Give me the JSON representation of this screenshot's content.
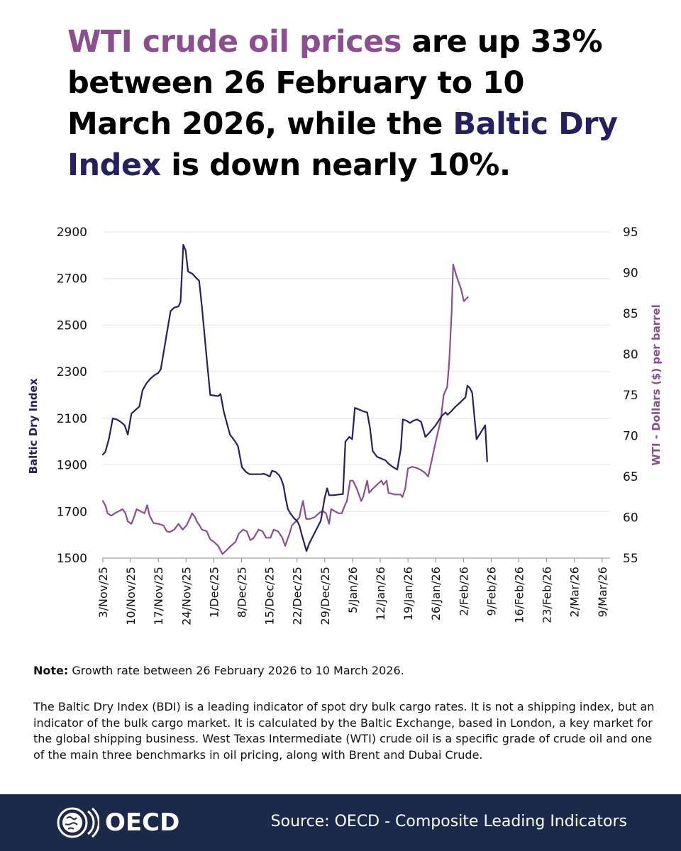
{
  "headline": {
    "part1": "WTI crude oil prices",
    "part2": " are up 33% between 26 February to 10 March 2026, while the ",
    "part3": "Baltic Dry Index",
    "part4": " is down nearly 10%."
  },
  "colors": {
    "wti": "#8b4f8f",
    "bdi": "#24215e",
    "footer_bg": "#1b2a4a"
  },
  "chart_data": {
    "type": "line",
    "xlabel": "",
    "ylabel_left": "Baltic Dry Index",
    "ylabel_right": "WTI - Dollars ($) per barrel",
    "ylim_left": [
      1500,
      2900
    ],
    "ylim_right": [
      55,
      95
    ],
    "yticks_left": [
      1500,
      1700,
      1900,
      2100,
      2300,
      2500,
      2700,
      2900
    ],
    "yticks_right": [
      55,
      60,
      65,
      70,
      75,
      80,
      85,
      90,
      95
    ],
    "xlim_days": [
      0,
      128
    ],
    "xticks": [
      {
        "day": 0,
        "label": "3/Nov/25"
      },
      {
        "day": 7,
        "label": "10/Nov/25"
      },
      {
        "day": 14,
        "label": "17/Nov/25"
      },
      {
        "day": 21,
        "label": "24/Nov/25"
      },
      {
        "day": 28,
        "label": "1/Dec/25"
      },
      {
        "day": 35,
        "label": "8/Dec/25"
      },
      {
        "day": 42,
        "label": "15/Dec/25"
      },
      {
        "day": 49,
        "label": "22/Dec/25"
      },
      {
        "day": 56,
        "label": "29/Dec/25"
      },
      {
        "day": 63,
        "label": "5/Jan/26"
      },
      {
        "day": 70,
        "label": "12/Jan/26"
      },
      {
        "day": 77,
        "label": "19/Jan/26"
      },
      {
        "day": 84,
        "label": "26/Jan/26"
      },
      {
        "day": 91,
        "label": "2/Feb/26"
      },
      {
        "day": 98,
        "label": "9/Feb/26"
      },
      {
        "day": 105,
        "label": "16/Feb/26"
      },
      {
        "day": 112,
        "label": "23/Feb/26"
      },
      {
        "day": 119,
        "label": "2/Mar/26"
      },
      {
        "day": 126,
        "label": "9/Mar/26"
      }
    ],
    "grid": true,
    "series": [
      {
        "name": "Baltic Dry Index",
        "axis": "left",
        "points": [
          [
            0,
            1945
          ],
          [
            0.6,
            1955
          ],
          [
            1.5,
            2010
          ],
          [
            2.5,
            2100
          ],
          [
            3.5,
            2095
          ],
          [
            4.5,
            2085
          ],
          [
            5.5,
            2070
          ],
          [
            6.3,
            2030
          ],
          [
            7.2,
            2120
          ],
          [
            8.5,
            2140
          ],
          [
            9.2,
            2150
          ],
          [
            10,
            2220
          ],
          [
            11,
            2250
          ],
          [
            12,
            2270
          ],
          [
            13,
            2285
          ],
          [
            14,
            2295
          ],
          [
            14.6,
            2310
          ],
          [
            15.3,
            2380
          ],
          [
            16.1,
            2460
          ],
          [
            17.1,
            2560
          ],
          [
            18,
            2575
          ],
          [
            19.1,
            2580
          ],
          [
            19.6,
            2600
          ],
          [
            20.3,
            2845
          ],
          [
            20.9,
            2820
          ],
          [
            21.5,
            2730
          ],
          [
            22.6,
            2720
          ],
          [
            23.7,
            2700
          ],
          [
            24.3,
            2690
          ],
          [
            25,
            2580
          ],
          [
            25.6,
            2470
          ],
          [
            26.3,
            2340
          ],
          [
            27.1,
            2200
          ],
          [
            29.1,
            2195
          ],
          [
            29.7,
            2205
          ],
          [
            30.5,
            2130
          ],
          [
            31.6,
            2060
          ],
          [
            32.1,
            2030
          ],
          [
            33.4,
            2000
          ],
          [
            34.1,
            1980
          ],
          [
            35.1,
            1890
          ],
          [
            36.1,
            1870
          ],
          [
            37,
            1860
          ],
          [
            39.7,
            1860
          ],
          [
            40.7,
            1862
          ],
          [
            41.6,
            1855
          ],
          [
            42.1,
            1850
          ],
          [
            42.7,
            1875
          ],
          [
            43.6,
            1870
          ],
          [
            44.5,
            1855
          ],
          [
            45,
            1840
          ],
          [
            45.6,
            1810
          ],
          [
            46.1,
            1760
          ],
          [
            46.7,
            1710
          ],
          [
            47.4,
            1690
          ],
          [
            48.3,
            1670
          ],
          [
            49,
            1660
          ],
          [
            49.6,
            1640
          ],
          [
            50.2,
            1600
          ],
          [
            51.4,
            1530
          ],
          [
            52,
            1560
          ],
          [
            53.5,
            1610
          ],
          [
            55,
            1660
          ],
          [
            56,
            1760
          ],
          [
            56.6,
            1800
          ],
          [
            57.1,
            1770
          ],
          [
            58.2,
            1770
          ],
          [
            60.6,
            1775
          ],
          [
            61.2,
            2000
          ],
          [
            61.7,
            2010
          ],
          [
            62.2,
            2020
          ],
          [
            62.9,
            2010
          ],
          [
            63.6,
            2145
          ],
          [
            64.3,
            2140
          ],
          [
            65.7,
            2130
          ],
          [
            66.7,
            2125
          ],
          [
            67.4,
            2060
          ],
          [
            68.1,
            1960
          ],
          [
            69.2,
            1935
          ],
          [
            71.3,
            1920
          ],
          [
            72.1,
            1905
          ],
          [
            73.3,
            1890
          ],
          [
            74.3,
            1880
          ],
          [
            75.2,
            1970
          ],
          [
            75.7,
            2095
          ],
          [
            76.6,
            2090
          ],
          [
            77.5,
            2080
          ],
          [
            78.4,
            2090
          ],
          [
            79.3,
            2095
          ],
          [
            80.3,
            2085
          ],
          [
            81.4,
            2020
          ],
          [
            82.5,
            2040
          ],
          [
            84,
            2070
          ],
          [
            85.5,
            2110
          ],
          [
            86.5,
            2125
          ],
          [
            87,
            2115
          ],
          [
            87.9,
            2130
          ],
          [
            89,
            2150
          ],
          [
            90.3,
            2170
          ],
          [
            91.5,
            2190
          ],
          [
            92,
            2240
          ],
          [
            92.6,
            2230
          ],
          [
            93.2,
            2210
          ],
          [
            94.3,
            2010
          ],
          [
            96.5,
            2070
          ],
          [
            97,
            1915
          ]
        ]
      },
      {
        "name": "WTI",
        "axis": "right",
        "points": [
          [
            0,
            62
          ],
          [
            0.6,
            61.5
          ],
          [
            1.2,
            60.5
          ],
          [
            2.1,
            60.2
          ],
          [
            3,
            60.5
          ],
          [
            5,
            61
          ],
          [
            5.7,
            60.5
          ],
          [
            6.3,
            59.5
          ],
          [
            7.2,
            59.2
          ],
          [
            8,
            60.2
          ],
          [
            8.5,
            61
          ],
          [
            10.5,
            60.5
          ],
          [
            11.2,
            61.5
          ],
          [
            11.8,
            60.2
          ],
          [
            12.8,
            59.3
          ],
          [
            14,
            59.2
          ],
          [
            15.3,
            59.0
          ],
          [
            16.1,
            58.3
          ],
          [
            16.9,
            58.2
          ],
          [
            18,
            58.5
          ],
          [
            19.1,
            59.2
          ],
          [
            20.1,
            58.5
          ],
          [
            21.1,
            59.0
          ],
          [
            22.1,
            60.0
          ],
          [
            22.5,
            60.5
          ],
          [
            23.3,
            60.0
          ],
          [
            23.7,
            59.5
          ],
          [
            24.4,
            59.0
          ],
          [
            25,
            58.5
          ],
          [
            26.2,
            58.3
          ],
          [
            27.1,
            57.3
          ],
          [
            28,
            57.0
          ],
          [
            29.1,
            56.5
          ],
          [
            30.2,
            55.5
          ],
          [
            31.3,
            56.0
          ],
          [
            32.3,
            56.5
          ],
          [
            33.5,
            57.0
          ],
          [
            34.3,
            58.0
          ],
          [
            35.4,
            58.5
          ],
          [
            36.3,
            58.3
          ],
          [
            37.2,
            57.2
          ],
          [
            38.1,
            57.5
          ],
          [
            39.3,
            58.5
          ],
          [
            40.3,
            58.3
          ],
          [
            41.2,
            57.5
          ],
          [
            42.3,
            57.5
          ],
          [
            43.1,
            58.5
          ],
          [
            44.2,
            58.3
          ],
          [
            45.3,
            57.5
          ],
          [
            46,
            56.5
          ],
          [
            47.1,
            58.0
          ],
          [
            47.7,
            59.0
          ],
          [
            48.7,
            59.5
          ],
          [
            49.6,
            60.0
          ],
          [
            50,
            61.0
          ],
          [
            50.5,
            62.0
          ],
          [
            51.3,
            59.8
          ],
          [
            52.2,
            59.8
          ],
          [
            53.4,
            60.0
          ],
          [
            54.5,
            60.5
          ],
          [
            55.4,
            60.8
          ],
          [
            56.3,
            60.5
          ],
          [
            57.1,
            59.2
          ],
          [
            57.6,
            61.0
          ],
          [
            59.5,
            60.5
          ],
          [
            60.3,
            60.5
          ],
          [
            61.1,
            61.5
          ],
          [
            61.6,
            62.0
          ],
          [
            62.4,
            64.5
          ],
          [
            63.1,
            64.5
          ],
          [
            64.1,
            63.5
          ],
          [
            65.2,
            62.0
          ],
          [
            65.7,
            62.5
          ],
          [
            66.7,
            64.5
          ],
          [
            67.2,
            63.0
          ],
          [
            68.1,
            63.5
          ],
          [
            69.2,
            64.0
          ],
          [
            70.3,
            64.5
          ],
          [
            70.8,
            64.0
          ],
          [
            71.6,
            64.5
          ],
          [
            72.1,
            63.0
          ],
          [
            73.7,
            62.8
          ],
          [
            75.1,
            62.8
          ],
          [
            75.6,
            62.5
          ],
          [
            76.3,
            63.5
          ],
          [
            77,
            66.0
          ],
          [
            78.1,
            66.2
          ],
          [
            79.5,
            66.0
          ],
          [
            80.3,
            65.8
          ],
          [
            81.2,
            65.5
          ],
          [
            82.1,
            65.0
          ],
          [
            83,
            67.0
          ],
          [
            84.1,
            69.5
          ],
          [
            85.3,
            72.0
          ],
          [
            86,
            75.0
          ],
          [
            86.9,
            76.0
          ],
          [
            87.4,
            79.0
          ],
          [
            88,
            85.0
          ],
          [
            88.4,
            91.0
          ],
          [
            89.3,
            89.5
          ],
          [
            90.4,
            88.0
          ],
          [
            91.1,
            86.5
          ],
          [
            92.1,
            87.0
          ]
        ]
      }
    ]
  },
  "note": {
    "label": "Note:",
    "text": " Growth rate between 26 February 2026 to 10 March 2026."
  },
  "description": "The Baltic Dry Index (BDI) is a leading indicator of spot dry bulk cargo rates. It is not a shipping index, but an indicator of the bulk cargo market. It is calculated by the Baltic Exchange, based in London, a key market for the global shipping business. West Texas Intermediate (WTI) crude oil is a specific grade of crude oil and one of the main three benchmarks in oil pricing, along with Brent and Dubai Crude.",
  "footer": {
    "logo_text": "OECD",
    "logo_icon": "globe-icon",
    "source": "Source: OECD - Composite Leading Indicators"
  }
}
